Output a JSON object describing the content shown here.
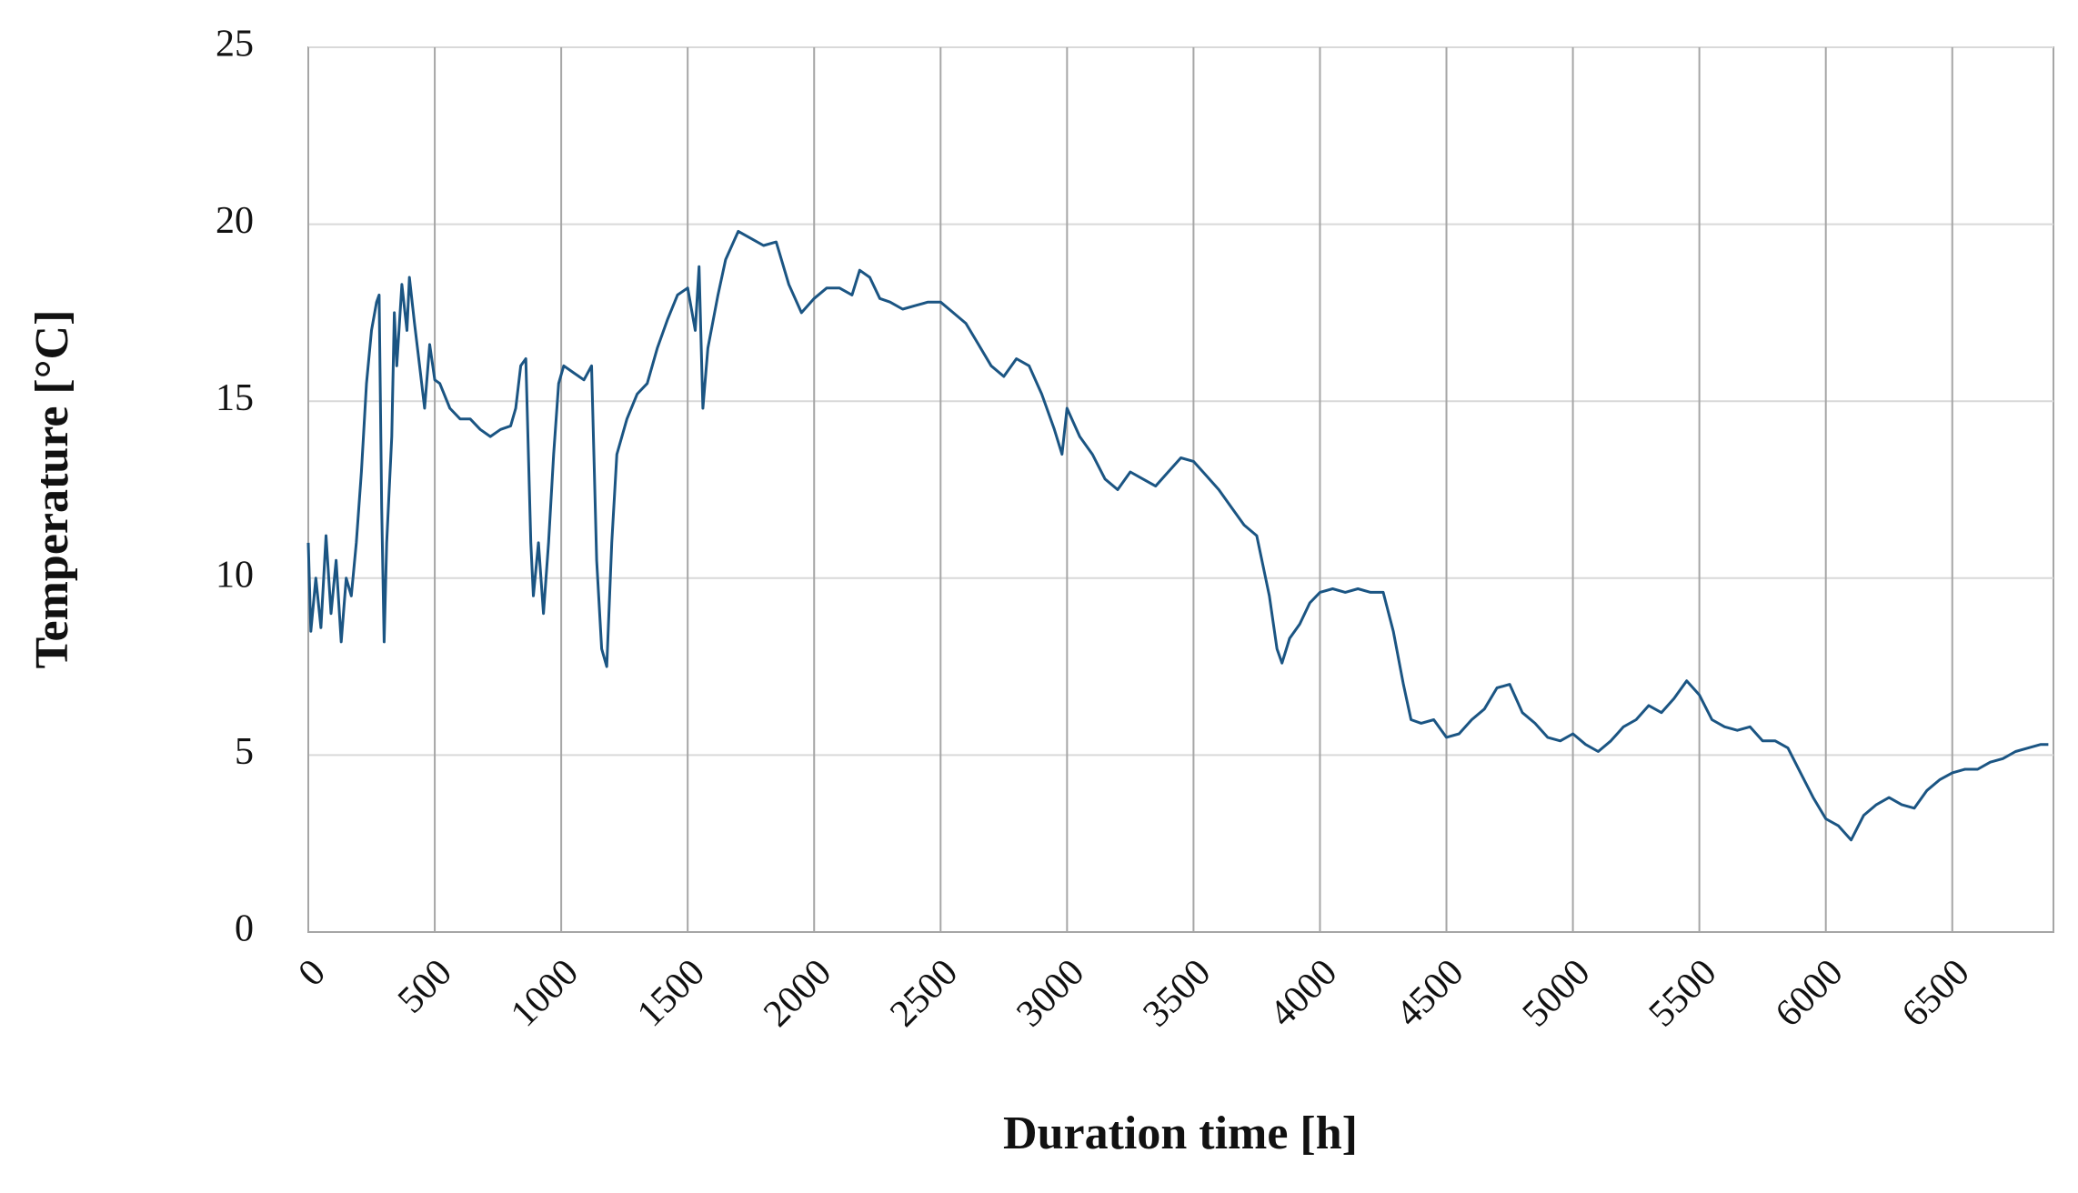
{
  "chart_data": {
    "type": "line",
    "xlabel": "Duration time [h]",
    "ylabel": "Temperature [°C]",
    "x": [
      0,
      10,
      30,
      50,
      70,
      90,
      110,
      130,
      150,
      170,
      190,
      210,
      230,
      250,
      270,
      280,
      290,
      300,
      310,
      330,
      340,
      350,
      370,
      390,
      400,
      420,
      440,
      460,
      480,
      500,
      520,
      560,
      600,
      640,
      680,
      720,
      760,
      800,
      820,
      840,
      860,
      880,
      890,
      910,
      930,
      950,
      970,
      990,
      1010,
      1050,
      1090,
      1120,
      1140,
      1160,
      1180,
      1200,
      1220,
      1260,
      1300,
      1340,
      1380,
      1420,
      1460,
      1500,
      1530,
      1545,
      1560,
      1580,
      1620,
      1650,
      1700,
      1750,
      1800,
      1850,
      1900,
      1950,
      2000,
      2050,
      2100,
      2150,
      2180,
      2220,
      2260,
      2300,
      2350,
      2400,
      2450,
      2500,
      2550,
      2600,
      2650,
      2700,
      2750,
      2800,
      2850,
      2900,
      2950,
      2980,
      3000,
      3050,
      3100,
      3150,
      3200,
      3250,
      3300,
      3350,
      3400,
      3450,
      3500,
      3550,
      3600,
      3650,
      3700,
      3750,
      3800,
      3830,
      3850,
      3880,
      3920,
      3960,
      4000,
      4050,
      4100,
      4150,
      4200,
      4250,
      4290,
      4330,
      4360,
      4400,
      4450,
      4500,
      4550,
      4600,
      4650,
      4700,
      4750,
      4800,
      4850,
      4900,
      4950,
      5000,
      5050,
      5100,
      5150,
      5200,
      5250,
      5300,
      5350,
      5400,
      5450,
      5500,
      5550,
      5600,
      5650,
      5700,
      5750,
      5800,
      5850,
      5900,
      5950,
      6000,
      6050,
      6100,
      6150,
      6200,
      6250,
      6300,
      6350,
      6400,
      6450,
      6500,
      6550,
      6600,
      6650,
      6700,
      6750,
      6800,
      6850,
      6880
    ],
    "series": [
      {
        "color": "#1b5583",
        "values": [
          11,
          8.5,
          10,
          8.6,
          11.2,
          9,
          10.5,
          8.2,
          10,
          9.5,
          11,
          13,
          15.5,
          17,
          17.8,
          18,
          12,
          8.2,
          11,
          14,
          17.5,
          16,
          18.3,
          17,
          18.5,
          17.2,
          16,
          14.8,
          16.6,
          15.6,
          15.5,
          14.8,
          14.5,
          14.5,
          14.2,
          14.0,
          14.2,
          14.3,
          14.8,
          16,
          16.2,
          11,
          9.5,
          11,
          9,
          11,
          13.5,
          15.5,
          16,
          15.8,
          15.6,
          16,
          10.5,
          8,
          7.5,
          11,
          13.5,
          14.5,
          15.2,
          15.5,
          16.5,
          17.3,
          18,
          18.2,
          17,
          18.8,
          14.8,
          16.5,
          18,
          19,
          19.8,
          19.6,
          19.4,
          19.5,
          18.3,
          17.5,
          17.9,
          18.2,
          18.2,
          18.0,
          18.7,
          18.5,
          17.9,
          17.8,
          17.6,
          17.7,
          17.8,
          17.8,
          17.5,
          17.2,
          16.6,
          16.0,
          15.7,
          16.2,
          16.0,
          15.2,
          14.2,
          13.5,
          14.8,
          14.0,
          13.5,
          12.8,
          12.5,
          13.0,
          12.8,
          12.6,
          13.0,
          13.4,
          13.3,
          12.9,
          12.5,
          12.0,
          11.5,
          11.2,
          9.5,
          8.0,
          7.6,
          8.3,
          8.7,
          9.3,
          9.6,
          9.7,
          9.6,
          9.7,
          9.6,
          9.6,
          8.5,
          7,
          6,
          5.9,
          6,
          5.5,
          5.6,
          6,
          6.3,
          6.9,
          7,
          6.2,
          5.9,
          5.5,
          5.4,
          5.6,
          5.3,
          5.1,
          5.4,
          5.8,
          6.0,
          6.4,
          6.2,
          6.6,
          7.1,
          6.7,
          6.0,
          5.8,
          5.7,
          5.8,
          5.4,
          5.4,
          5.2,
          4.5,
          3.8,
          3.2,
          3.0,
          2.6,
          3.3,
          3.6,
          3.8,
          3.6,
          3.5,
          4.0,
          4.3,
          4.5,
          4.6,
          4.6,
          4.8,
          4.9,
          5.1,
          5.2,
          5.3,
          5.3
        ]
      }
    ],
    "xlim": [
      0,
      6900
    ],
    "xticks": [
      0,
      500,
      1000,
      1500,
      2000,
      2500,
      3000,
      3500,
      4000,
      4500,
      5000,
      5500,
      6000,
      6500
    ],
    "ylim": [
      0,
      25
    ],
    "yticks": [
      0,
      5,
      10,
      15,
      20,
      25
    ],
    "grid": true
  }
}
